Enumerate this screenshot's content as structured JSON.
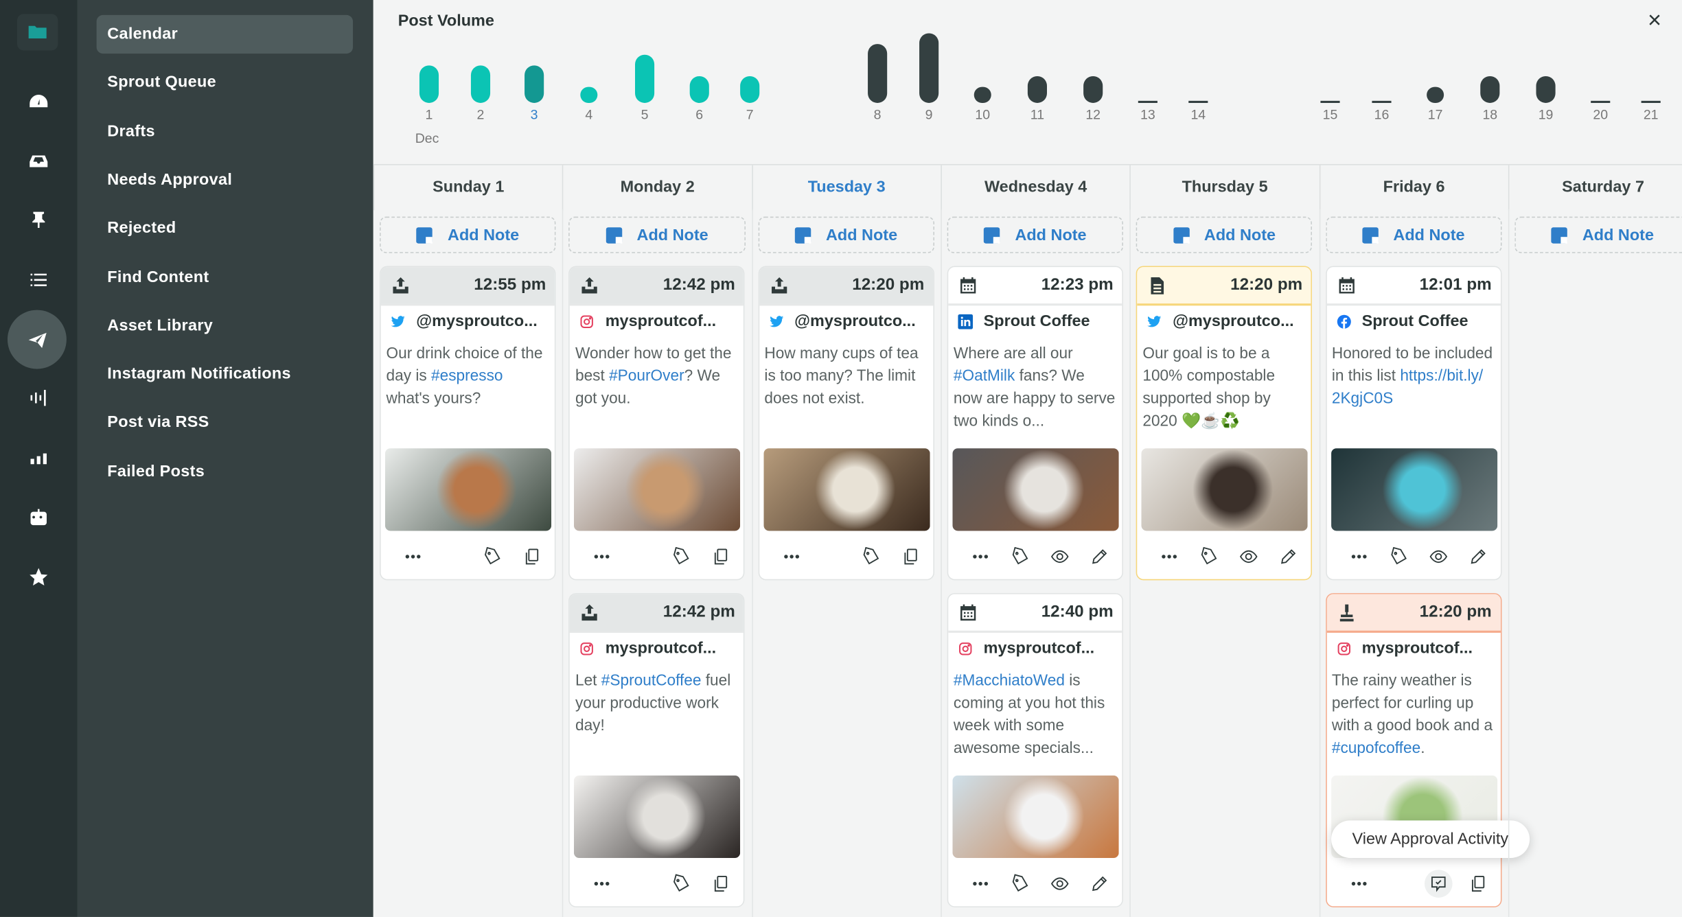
{
  "rail": {
    "items": [
      {
        "icon": "folder-icon",
        "active": false
      },
      {
        "icon": "gauge-icon",
        "active": false
      },
      {
        "icon": "inbox-icon",
        "active": false
      },
      {
        "icon": "pin-icon",
        "active": false
      },
      {
        "icon": "list-icon",
        "active": false
      },
      {
        "icon": "paper-plane-icon",
        "active": true
      },
      {
        "icon": "listening-icon",
        "active": false
      },
      {
        "icon": "bar-chart-icon",
        "active": false
      },
      {
        "icon": "bot-icon",
        "active": false
      },
      {
        "icon": "star-icon",
        "active": false
      }
    ]
  },
  "nav": {
    "items": [
      {
        "label": "Calendar",
        "selected": true
      },
      {
        "label": "Sprout Queue"
      },
      {
        "label": "Drafts"
      },
      {
        "label": "Needs Approval"
      },
      {
        "label": "Rejected"
      },
      {
        "label": "Find Content"
      },
      {
        "label": "Asset Library"
      },
      {
        "label": "Instagram Notifications"
      },
      {
        "label": "Post via RSS"
      },
      {
        "label": "Failed Posts"
      }
    ]
  },
  "post_volume": {
    "title": "Post Volume",
    "close_icon": "×",
    "month_label": "Dec",
    "colors": {
      "current_week": "#0bc4b4",
      "today": "#139892",
      "other": "#344041"
    }
  },
  "chart_data": {
    "type": "bar",
    "title": "Post Volume",
    "categories": [
      "1",
      "2",
      "3",
      "4",
      "5",
      "6",
      "7",
      "8",
      "9",
      "10",
      "11",
      "12",
      "13",
      "14",
      "15",
      "16",
      "17",
      "18",
      "19",
      "20",
      "21"
    ],
    "values": [
      3,
      3,
      3,
      1,
      4,
      2,
      2,
      5,
      6,
      1,
      2,
      2,
      0,
      0,
      0,
      0,
      1,
      2,
      2,
      0,
      0
    ],
    "highlight": {
      "current_week": [
        "1",
        "2",
        "3",
        "4",
        "5",
        "6",
        "7"
      ],
      "today": "3"
    },
    "grid": false
  },
  "calendar": {
    "add_note_label": "Add Note",
    "days": [
      {
        "label": "Sunday 1",
        "today": false,
        "cards": [
          {
            "status": "published",
            "status_icon": "published-icon",
            "time": "12:55 pm",
            "network": "twitter",
            "account": "@mysproutco...",
            "text": [
              {
                "t": "Our drink choice of the day is "
              },
              {
                "t": "#espresso",
                "tag": true
              },
              {
                "t": " what's yours?"
              }
            ],
            "image_tone": [
              "#e9ecea",
              "#b9784a",
              "#3d4a40"
            ],
            "actions": [
              "more",
              "tag",
              "copy"
            ]
          }
        ]
      },
      {
        "label": "Monday 2",
        "today": false,
        "cards": [
          {
            "status": "published",
            "status_icon": "published-icon",
            "time": "12:42 pm",
            "network": "instagram",
            "account": "mysproutcof...",
            "text": [
              {
                "t": "Wonder how to get the best "
              },
              {
                "t": "#PourOver",
                "tag": true
              },
              {
                "t": "? We got you."
              }
            ],
            "image_tone": [
              "#ededed",
              "#c89a70",
              "#6b4b35"
            ],
            "actions": [
              "more",
              "tag",
              "copy"
            ]
          },
          {
            "status": "published",
            "status_icon": "published-icon",
            "time": "12:42 pm",
            "network": "instagram",
            "account": "mysproutcof...",
            "text": [
              {
                "t": "Let "
              },
              {
                "t": "#SproutCoffee",
                "tag": true
              },
              {
                "t": " fuel your productive work day!"
              }
            ],
            "image_tone": [
              "#f4f3f1",
              "#e2e0dc",
              "#2a2523"
            ],
            "actions": [
              "more",
              "tag",
              "copy"
            ]
          }
        ]
      },
      {
        "label": "Tuesday 3",
        "today": true,
        "cards": [
          {
            "status": "published",
            "status_icon": "published-icon",
            "time": "12:20 pm",
            "network": "twitter",
            "account": "@mysproutco...",
            "text": [
              {
                "t": "How many cups of tea is too many? The limit does not exist."
              }
            ],
            "image_tone": [
              "#b79c7c",
              "#e8e2d6",
              "#3a2a1e"
            ],
            "actions": [
              "more",
              "tag",
              "copy"
            ]
          }
        ]
      },
      {
        "label": "Wednesday 4",
        "today": false,
        "cards": [
          {
            "status": "scheduled",
            "status_icon": "calendar-icon",
            "time": "12:23 pm",
            "network": "linkedin",
            "account": "Sprout Coffee",
            "text": [
              {
                "t": "Where are all our "
              },
              {
                "t": "#OatMilk",
                "tag": true
              },
              {
                "t": " fans? We now are happy to serve two kinds o..."
              }
            ],
            "image_tone": [
              "#57575a",
              "#e6e3de",
              "#8a5a3a"
            ],
            "actions": [
              "more",
              "tag",
              "view",
              "edit"
            ]
          },
          {
            "status": "scheduled",
            "status_icon": "calendar-icon",
            "time": "12:40 pm",
            "network": "instagram",
            "account": "mysproutcof...",
            "text": [
              {
                "t": "#MacchiatoWed",
                "tag": true
              },
              {
                "t": " is coming at you hot this week with some awesome specials..."
              }
            ],
            "image_tone": [
              "#cfe0ea",
              "#f2f2f2",
              "#c8773e"
            ],
            "actions": [
              "more",
              "tag",
              "view",
              "edit"
            ]
          }
        ]
      },
      {
        "label": "Thursday 5",
        "today": false,
        "cards": [
          {
            "status": "draft",
            "status_icon": "draft-icon",
            "time": "12:20 pm",
            "network": "twitter",
            "account": "@mysproutco...",
            "text": [
              {
                "t": "Our goal is to be a 100% compostable supported shop by 2020 💚☕♻️"
              }
            ],
            "image_tone": [
              "#e8e6e2",
              "#3b302a",
              "#9a8a78"
            ],
            "actions": [
              "more",
              "tag",
              "view",
              "edit"
            ]
          }
        ]
      },
      {
        "label": "Friday 6",
        "today": false,
        "cards": [
          {
            "status": "scheduled",
            "status_icon": "calendar-icon",
            "time": "12:01 pm",
            "network": "facebook",
            "account": "Sprout Coffee",
            "text": [
              {
                "t": "Honored to be included in this list "
              },
              {
                "t": "https://bit.ly/ 2KgjC0S",
                "tag": true
              }
            ],
            "image_tone": [
              "#1f3438",
              "#4fc3d6",
              "#6c7a7c"
            ],
            "actions": [
              "more",
              "tag",
              "view",
              "edit"
            ]
          },
          {
            "status": "approval",
            "status_icon": "approval-stamp-icon",
            "time": "12:20 pm",
            "network": "instagram",
            "account": "mysproutcof...",
            "text": [
              {
                "t": "The rainy weather is perfect for curling up with a good book and a "
              },
              {
                "t": "#cupofcoffee",
                "tag": true
              },
              {
                "t": "."
              }
            ],
            "image_tone": [
              "#f4f4f2",
              "#9cc47a",
              "#e9ece4"
            ],
            "actions": [
              "more",
              "approval",
              "copy"
            ],
            "tooltip": "View Approval Activity"
          }
        ]
      },
      {
        "label": "Saturday 7",
        "today": false,
        "cards": []
      }
    ]
  }
}
